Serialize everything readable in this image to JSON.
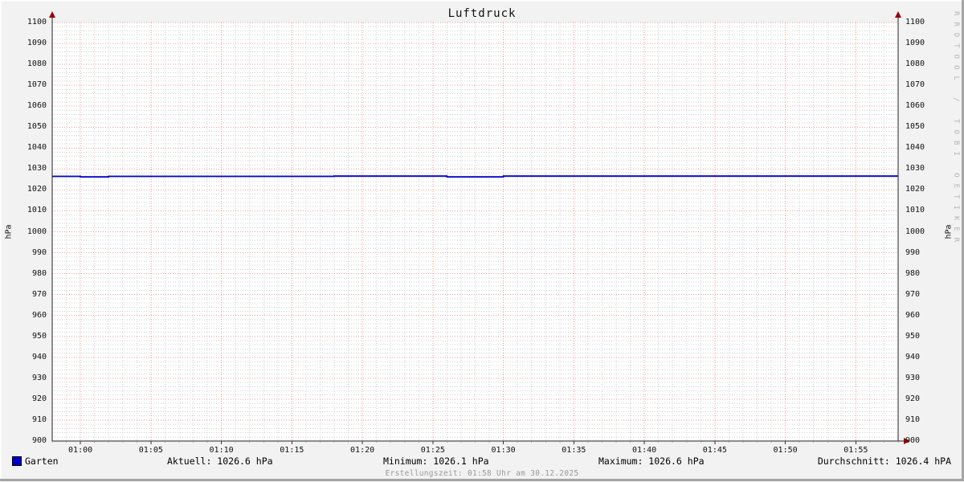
{
  "title": "Luftdruck",
  "watermark": "RRDTOOL / TOBI OETIKER",
  "axis": {
    "ylabel_left": "hPa",
    "ylabel_right": "hPa"
  },
  "legend": {
    "label": "Garten",
    "color": "#0000c8"
  },
  "stats": {
    "aktuell": "Aktuell: 1026.6 hPa",
    "minimum": "Minimum: 1026.1 hPa",
    "maximum": "Maximum: 1026.6 hPa",
    "durchschnitt": "Durchschnitt: 1026.4 hPA"
  },
  "footer": "Erstellungszeit: 01:58 Uhr am 30.12.2025",
  "chart_data": {
    "type": "line",
    "title": "Luftdruck",
    "ylabel": "hPa",
    "ylim": [
      900,
      1100
    ],
    "ytick_step": 10,
    "y_minor_step": 2,
    "x_range_minutes": [
      58,
      118
    ],
    "x_minor_step_min": 1,
    "x_major_step_min": 5,
    "xticks": [
      {
        "minute": 60,
        "label": "01:00"
      },
      {
        "minute": 65,
        "label": "01:05"
      },
      {
        "minute": 70,
        "label": "01:10"
      },
      {
        "minute": 75,
        "label": "01:15"
      },
      {
        "minute": 80,
        "label": "01:20"
      },
      {
        "minute": 85,
        "label": "01:25"
      },
      {
        "minute": 90,
        "label": "01:30"
      },
      {
        "minute": 95,
        "label": "01:35"
      },
      {
        "minute": 100,
        "label": "01:40"
      },
      {
        "minute": 105,
        "label": "01:45"
      },
      {
        "minute": 110,
        "label": "01:50"
      },
      {
        "minute": 115,
        "label": "01:55"
      }
    ],
    "grid": {
      "major_color": "rgba(235,40,40,0.45)",
      "minor_color": "#d2d2d2",
      "axis_color": "#222222",
      "arrow_color": "#990000",
      "plot_bg": "#ffffff"
    },
    "legend_position": "bottom-left",
    "series": [
      {
        "name": "Garten",
        "color": "#0000c8",
        "unit": "hPa",
        "aktuell": 1026.6,
        "minimum": 1026.1,
        "maximum": 1026.6,
        "durchschnitt": 1026.4,
        "points_min_hpa": [
          [
            58,
            1026.5
          ],
          [
            60,
            1026.5
          ],
          [
            60,
            1026.2
          ],
          [
            62,
            1026.2
          ],
          [
            62,
            1026.5
          ],
          [
            78,
            1026.5
          ],
          [
            78,
            1026.6
          ],
          [
            86,
            1026.6
          ],
          [
            86,
            1026.2
          ],
          [
            90,
            1026.2
          ],
          [
            90,
            1026.6
          ],
          [
            118,
            1026.6
          ]
        ]
      }
    ]
  }
}
